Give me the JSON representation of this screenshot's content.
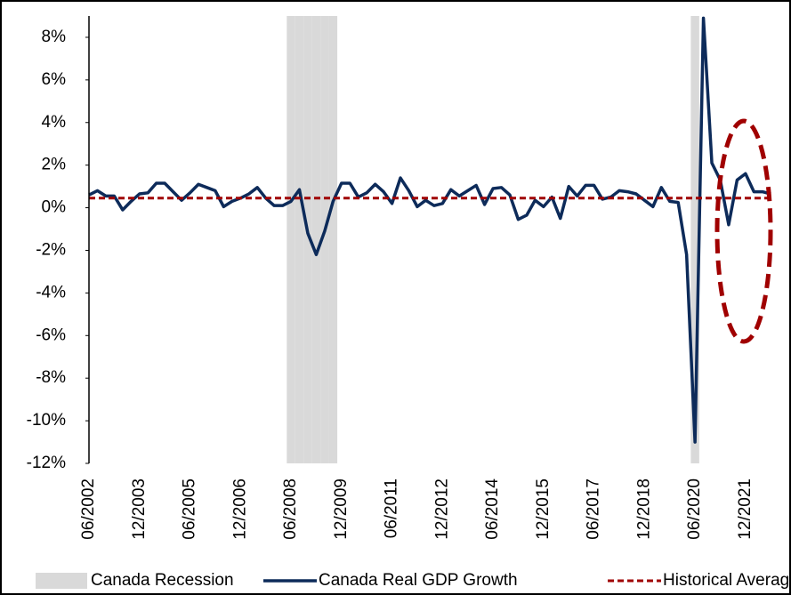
{
  "chart_data": {
    "type": "line",
    "categories": [
      "06/2002",
      null,
      null,
      null,
      null,
      null,
      "12/2003",
      null,
      null,
      null,
      null,
      null,
      "06/2005",
      null,
      null,
      null,
      null,
      null,
      "12/2006",
      null,
      null,
      null,
      null,
      null,
      "06/2008",
      null,
      null,
      null,
      null,
      null,
      "12/2009",
      null,
      null,
      null,
      null,
      null,
      "06/2011",
      null,
      null,
      null,
      null,
      null,
      "12/2012",
      null,
      null,
      null,
      null,
      null,
      "06/2014",
      null,
      null,
      null,
      null,
      null,
      "12/2015",
      null,
      null,
      null,
      null,
      null,
      "06/2017",
      null,
      null,
      null,
      null,
      null,
      "12/2018",
      null,
      null,
      null,
      null,
      null,
      "06/2020",
      null,
      null,
      null,
      null,
      null,
      "12/2021",
      null,
      null,
      null
    ],
    "series": [
      {
        "name": "Canada Recession",
        "kind": "bar",
        "axis": "y2",
        "color": "#d9d9d9",
        "values": [
          0,
          0,
          0,
          0,
          0,
          0,
          0,
          0,
          0,
          0,
          0,
          0,
          0,
          0,
          0,
          0,
          0,
          0,
          0,
          0,
          0,
          0,
          0,
          0,
          1,
          1,
          1,
          1,
          1,
          1,
          0,
          0,
          0,
          0,
          0,
          0,
          0,
          0,
          0,
          0,
          0,
          0,
          0,
          0,
          0,
          0,
          0,
          0,
          0,
          0,
          0,
          0,
          0,
          0,
          0,
          0,
          0,
          0,
          0,
          0,
          0,
          0,
          0,
          0,
          0,
          0,
          0,
          0,
          0,
          0,
          0,
          0,
          1,
          0,
          0,
          0,
          0,
          0,
          0,
          0,
          0,
          0
        ]
      },
      {
        "name": "Canada Real GDP Growth",
        "kind": "line",
        "color": "#0d2b5a",
        "values": [
          0.6,
          0.8,
          0.55,
          0.55,
          -0.1,
          0.3,
          0.65,
          0.7,
          1.15,
          1.15,
          0.75,
          0.35,
          0.7,
          1.1,
          0.95,
          0.8,
          0.05,
          0.3,
          0.45,
          0.65,
          0.95,
          0.45,
          0.1,
          0.1,
          0.3,
          0.85,
          -1.2,
          -2.2,
          -1.1,
          0.3,
          1.15,
          1.15,
          0.5,
          0.7,
          1.1,
          0.75,
          0.2,
          1.4,
          0.8,
          0.05,
          0.35,
          0.1,
          0.2,
          0.85,
          0.55,
          0.8,
          1.05,
          0.15,
          0.9,
          0.95,
          0.6,
          -0.55,
          -0.35,
          0.35,
          0.05,
          0.5,
          -0.5,
          1.0,
          0.55,
          1.05,
          1.05,
          0.4,
          0.5,
          0.8,
          0.75,
          0.65,
          0.35,
          0.05,
          0.95,
          0.3,
          0.25,
          -2.2,
          -11.0,
          8.9,
          2.1,
          1.3,
          -0.8,
          1.3,
          1.6,
          0.75,
          0.75,
          0.65
        ]
      },
      {
        "name": "Historical Average",
        "kind": "hline",
        "color": "#a00000",
        "value": 0.45
      }
    ],
    "ylim": [
      -12,
      9
    ],
    "yticks": [
      {
        "value": -12,
        "label": "-12%"
      },
      {
        "value": -10,
        "label": "-10%"
      },
      {
        "value": -8,
        "label": "-8%"
      },
      {
        "value": -6,
        "label": "-6%"
      },
      {
        "value": -4,
        "label": "-4%"
      },
      {
        "value": -2,
        "label": "-2%"
      },
      {
        "value": 0,
        "label": "0%"
      },
      {
        "value": 2,
        "label": "2%"
      },
      {
        "value": 4,
        "label": "4%"
      },
      {
        "value": 6,
        "label": "6%"
      },
      {
        "value": 8,
        "label": "8%"
      }
    ],
    "y2lim": [
      0,
      1
    ],
    "grid": false,
    "legend": "bottom"
  }
}
